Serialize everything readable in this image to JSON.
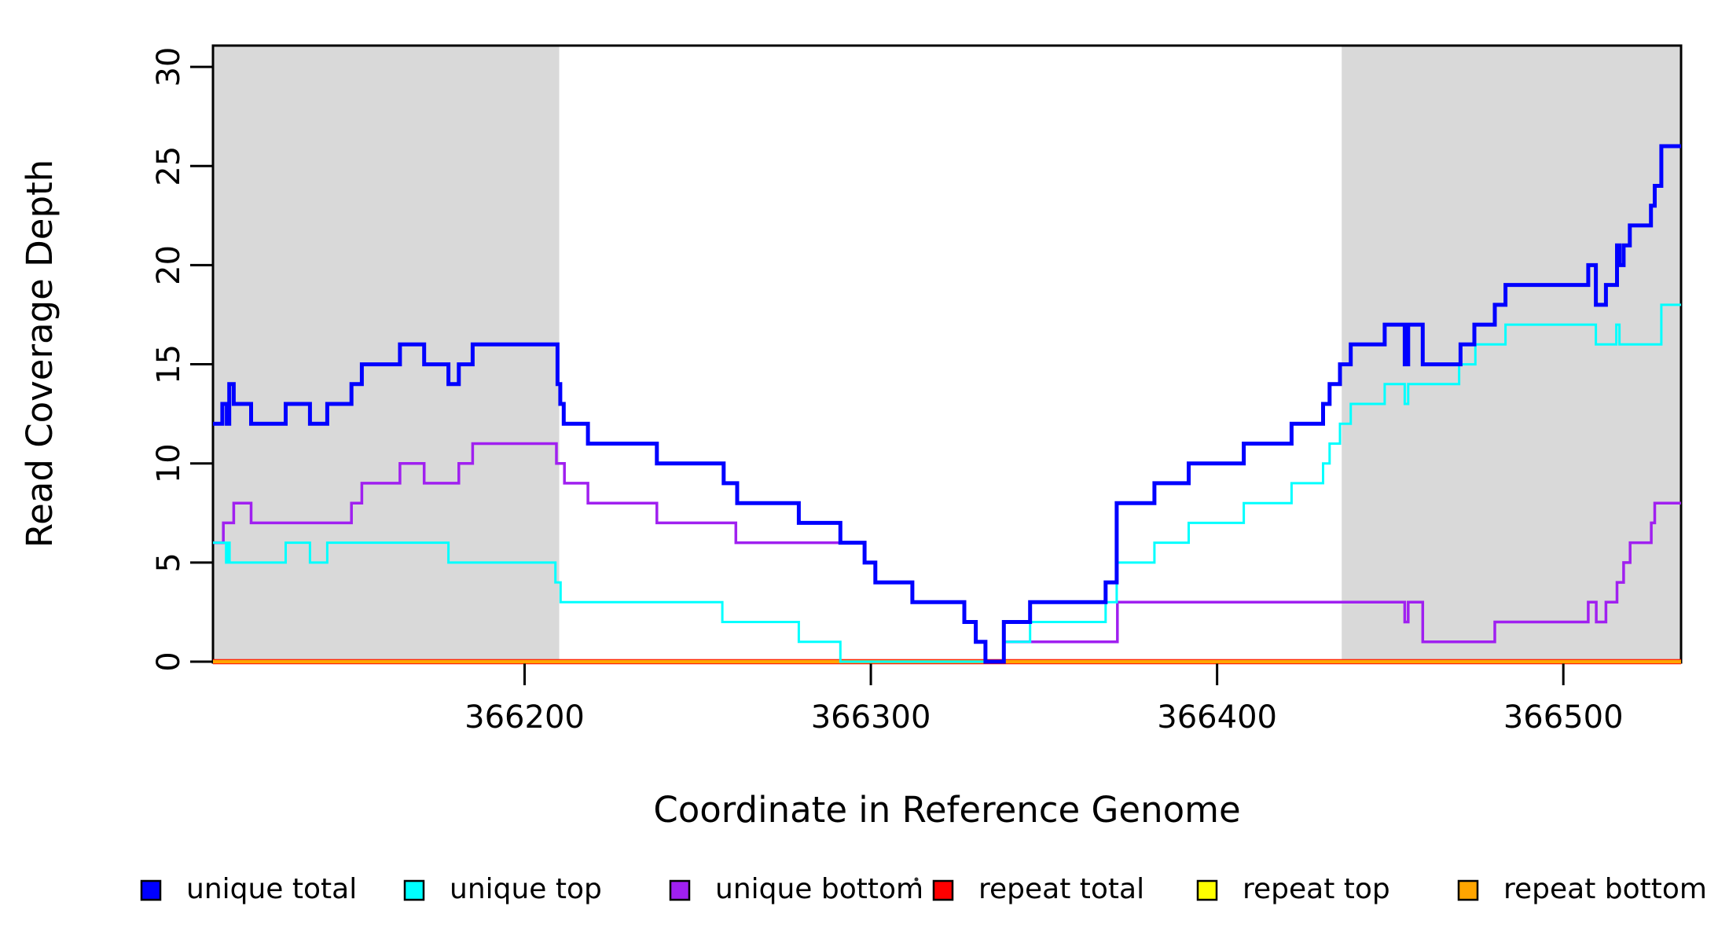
{
  "chart_data": {
    "type": "line",
    "subtype": "step",
    "title": "",
    "xlabel": "Coordinate in Reference Genome",
    "ylabel": "Read Coverage Depth",
    "xlim": [
      366110,
      366534
    ],
    "ylim": [
      0,
      31
    ],
    "x_ticks": [
      366200,
      366300,
      366400,
      366500
    ],
    "y_ticks": [
      0,
      5,
      10,
      15,
      20,
      25,
      30
    ],
    "grid": false,
    "background_color": "#FFFFFF",
    "shaded_regions": [
      {
        "x_start": 366110,
        "x_end": 366210,
        "color": "#D9D9D9"
      },
      {
        "x_start": 366436,
        "x_end": 366534,
        "color": "#D9D9D9"
      }
    ],
    "series": [
      {
        "name": "repeat total",
        "color": "#FF0000",
        "width": 6.5,
        "points": [
          [
            366110,
            0
          ]
        ]
      },
      {
        "name": "repeat top",
        "color": "#FFFF00",
        "width": 3,
        "points": [
          [
            366110,
            0
          ]
        ]
      },
      {
        "name": "repeat bottom",
        "color": "#FFA500",
        "width": 4.5,
        "points": [
          [
            366110,
            0
          ]
        ]
      },
      {
        "name": "unique bottom",
        "color": "#A020F0",
        "width": 3.5,
        "points": [
          [
            366110,
            6
          ],
          [
            366113,
            7
          ],
          [
            366116,
            8
          ],
          [
            366121,
            7
          ],
          [
            366150,
            8
          ],
          [
            366153,
            9
          ],
          [
            366164,
            10
          ],
          [
            366171,
            9
          ],
          [
            366181,
            10
          ],
          [
            366185,
            11
          ],
          [
            366209.2,
            10
          ],
          [
            366211.5,
            9
          ],
          [
            366218.3,
            8
          ],
          [
            366238.2,
            7
          ],
          [
            366261,
            6
          ],
          [
            366298.2,
            5
          ],
          [
            366301.3,
            4
          ],
          [
            366312,
            3
          ],
          [
            366327,
            2
          ],
          [
            366330.3,
            1
          ],
          [
            366333.1,
            0
          ],
          [
            366338.4,
            1
          ],
          [
            366371.2,
            3
          ],
          [
            366454.2,
            2
          ],
          [
            366455.2,
            3
          ],
          [
            366459.4,
            1
          ],
          [
            366480.2,
            2
          ],
          [
            366507.2,
            3
          ],
          [
            366509.5,
            2
          ],
          [
            366512.3,
            3
          ],
          [
            366515.5,
            4
          ],
          [
            366517.4,
            5
          ],
          [
            366519.3,
            6
          ],
          [
            366525.4,
            7
          ],
          [
            366526.4,
            8
          ]
        ]
      },
      {
        "name": "unique top",
        "color": "#00FFFF",
        "width": 3,
        "points": [
          [
            366110,
            6
          ],
          [
            366113.8,
            5
          ],
          [
            366114.3,
            6
          ],
          [
            366114.8,
            5
          ],
          [
            366131,
            6
          ],
          [
            366138,
            5
          ],
          [
            366143,
            6
          ],
          [
            366178,
            5
          ],
          [
            366208.9,
            4
          ],
          [
            366210.4,
            3
          ],
          [
            366257.1,
            2
          ],
          [
            366279.2,
            1
          ],
          [
            366291.2,
            0
          ],
          [
            366338.4,
            1
          ],
          [
            366346,
            2
          ],
          [
            366367.8,
            3
          ],
          [
            366371,
            5
          ],
          [
            366381.9,
            6
          ],
          [
            366391.8,
            7
          ],
          [
            366407.7,
            8
          ],
          [
            366421.5,
            9
          ],
          [
            366430.6,
            10
          ],
          [
            366432.5,
            11
          ],
          [
            366435.5,
            12
          ],
          [
            366438.6,
            13
          ],
          [
            366448.4,
            14
          ],
          [
            366454.2,
            13
          ],
          [
            366455.2,
            14
          ],
          [
            366469.9,
            15
          ],
          [
            366474.6,
            16
          ],
          [
            366483.3,
            17
          ],
          [
            366509.4,
            16
          ],
          [
            366515.3,
            17
          ],
          [
            366516.2,
            16
          ],
          [
            366528.3,
            18
          ]
        ]
      },
      {
        "name": "unique total",
        "color": "#0000FF",
        "width": 5,
        "points": [
          [
            366110,
            12
          ],
          [
            366112.7,
            13
          ],
          [
            366114,
            12
          ],
          [
            366114.7,
            14
          ],
          [
            366116,
            13
          ],
          [
            366121,
            12
          ],
          [
            366131,
            13
          ],
          [
            366138,
            12
          ],
          [
            366143,
            13
          ],
          [
            366150,
            14
          ],
          [
            366153,
            15
          ],
          [
            366164,
            16
          ],
          [
            366171,
            15
          ],
          [
            366178,
            14
          ],
          [
            366181,
            15
          ],
          [
            366185,
            16
          ],
          [
            366209.5,
            14
          ],
          [
            366210.3,
            13
          ],
          [
            366211.3,
            12
          ],
          [
            366218.3,
            11
          ],
          [
            366238.2,
            10
          ],
          [
            366257.5,
            9
          ],
          [
            366261.4,
            8
          ],
          [
            366279.2,
            7
          ],
          [
            366291.2,
            6
          ],
          [
            366298.2,
            5
          ],
          [
            366301.3,
            4
          ],
          [
            366312,
            3
          ],
          [
            366327,
            2
          ],
          [
            366330.3,
            1
          ],
          [
            366333.1,
            0
          ],
          [
            366338.4,
            2
          ],
          [
            366346,
            3
          ],
          [
            366367.8,
            4
          ],
          [
            366371,
            8
          ],
          [
            366381.9,
            9
          ],
          [
            366391.8,
            10
          ],
          [
            366407.7,
            11
          ],
          [
            366421.5,
            12
          ],
          [
            366430.6,
            13
          ],
          [
            366432.5,
            14
          ],
          [
            366435.5,
            15
          ],
          [
            366438.6,
            16
          ],
          [
            366448.4,
            17
          ],
          [
            366454.2,
            15
          ],
          [
            366455.2,
            17
          ],
          [
            366459.4,
            15
          ],
          [
            366470.3,
            16
          ],
          [
            366474.3,
            17
          ],
          [
            366480.2,
            18
          ],
          [
            366483.3,
            19
          ],
          [
            366507.2,
            20
          ],
          [
            366509.4,
            18
          ],
          [
            366512.3,
            19
          ],
          [
            366515.5,
            21
          ],
          [
            366516.2,
            20
          ],
          [
            366517.4,
            21
          ],
          [
            366519.2,
            22
          ],
          [
            366525.3,
            23
          ],
          [
            366526.4,
            24
          ],
          [
            366528.3,
            26
          ]
        ]
      }
    ],
    "legend_position": "bottom"
  },
  "legend": {
    "items": [
      {
        "label": "unique total",
        "color": "#0000FF"
      },
      {
        "label": "unique top",
        "color": "#00FFFF"
      },
      {
        "label": "unique bottom",
        "color": "#A020F0"
      },
      {
        "label": "repeat total",
        "color": "#FF0000"
      },
      {
        "label": "repeat top",
        "color": "#FFFF00"
      },
      {
        "label": "repeat bottom",
        "color": "#FFA500"
      }
    ]
  }
}
